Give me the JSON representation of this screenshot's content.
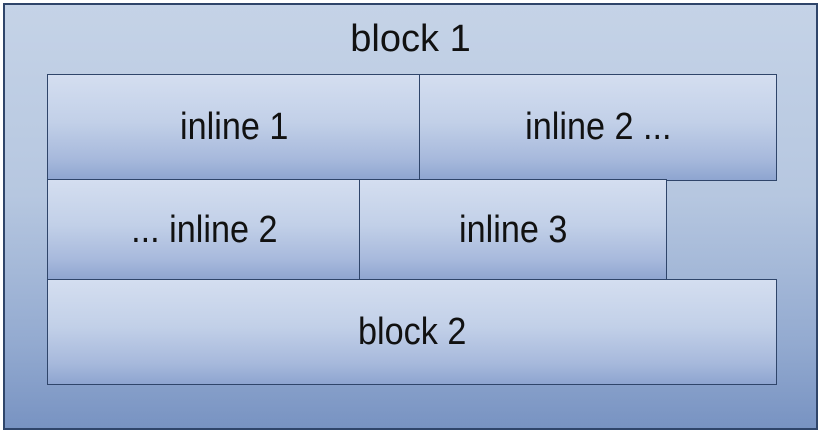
{
  "diagram": {
    "outer_block": {
      "label": "block 1"
    },
    "line_boxes": [
      {
        "boxes": [
          {
            "label": "inline 1"
          },
          {
            "label": "inline 2 ..."
          }
        ]
      },
      {
        "boxes": [
          {
            "label": "... inline 2"
          },
          {
            "label": "inline 3"
          }
        ]
      }
    ],
    "inner_block": {
      "label": "block 2"
    }
  }
}
